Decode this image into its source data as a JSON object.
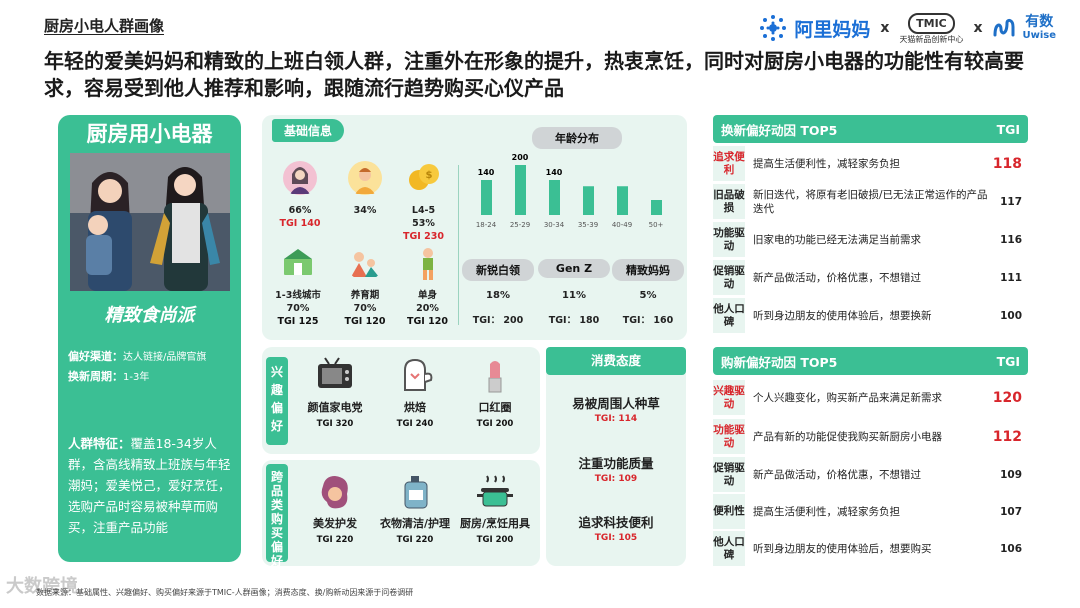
{
  "header": {
    "page_title": "厨房小电人群画像",
    "headline": "年轻的爱美妈妈和精致的上班白领人群，注重外在形象的提升，热衷烹饪，同时对厨房小电器的功能性有较高要求，容易受到他人推荐和影响，跟随流行趋势购买心仪产品"
  },
  "logos": {
    "alimama": "阿里妈妈",
    "tmic": "TMIC",
    "tmic_sub": "天猫新品创新中心",
    "uwise_cn": "有数",
    "uwise_en": "Uwise",
    "sep": "x"
  },
  "left": {
    "title": "厨房用小电器",
    "subtitle": "精致食尚派",
    "channel_label": "偏好渠道：",
    "channel_value": "达人链接/品牌官旗",
    "cycle_label": "换新周期：",
    "cycle_value": "1-3年",
    "feature_label": "人群特征：",
    "feature_text": "覆盖18-34岁人群，含高线精致上班族与年轻潮妈；爱美悦己，爱好烹饪，选购产品时容易被种草而购买，注重产品功能"
  },
  "basic": {
    "title": "基础信息",
    "stats": [
      {
        "value": "66%",
        "tgi": "TGI 140",
        "icon": "female-icon",
        "tgi_red": true
      },
      {
        "value": "34%",
        "tgi": "",
        "icon": "male-icon",
        "tgi_red": false
      },
      {
        "value": "L4-5",
        "value2": "53%",
        "tgi": "TGI 230",
        "icon": "coins-icon",
        "tgi_red": true
      },
      {
        "value": "1-3线城市",
        "value2": "70%",
        "tgi": "TGI 125",
        "icon": "city-icon",
        "tgi_red": false
      },
      {
        "value": "养育期",
        "value2": "70%",
        "tgi": "TGI 120",
        "icon": "parenting-icon",
        "tgi_red": false
      },
      {
        "value": "单身",
        "value2": "20%",
        "tgi": "TGI 120",
        "icon": "single-icon",
        "tgi_red": false
      }
    ]
  },
  "age": {
    "title": "年龄分布"
  },
  "chart_data": {
    "type": "bar",
    "title": "年龄分布",
    "categories": [
      "18-24",
      "25-29",
      "30-34",
      "35-39",
      "40-49",
      "50+"
    ],
    "values": [
      140,
      200,
      140,
      null,
      null,
      null
    ],
    "labels": [
      "140",
      "200",
      "140",
      "",
      "",
      ""
    ],
    "approx_heights": [
      140,
      200,
      140,
      115,
      115,
      60
    ]
  },
  "segments": [
    {
      "name": "新锐白领",
      "value": "18%",
      "tgi": "TGI： 200"
    },
    {
      "name": "Gen Z",
      "value": "11%",
      "tgi": "TGI： 180"
    },
    {
      "name": "精致妈妈",
      "value": "5%",
      "tgi": "TGI： 160"
    }
  ],
  "interest": {
    "title": "兴趣偏好",
    "items": [
      {
        "name": "颜值家电党",
        "tgi": "TGI 320",
        "icon": "tv-icon"
      },
      {
        "name": "烘焙",
        "tgi": "TGI 240",
        "icon": "oven-mitt-icon"
      },
      {
        "name": "口红圈",
        "tgi": "TGI 200",
        "icon": "lipstick-icon"
      }
    ]
  },
  "cross": {
    "title": "跨品类购买偏好",
    "items": [
      {
        "name": "美发护发",
        "tgi": "TGI 220",
        "icon": "hair-icon"
      },
      {
        "name": "衣物清洁/护理",
        "tgi": "TGI 220",
        "icon": "detergent-icon"
      },
      {
        "name": "厨房/烹饪用具",
        "tgi": "TGI 200",
        "icon": "pot-icon"
      }
    ]
  },
  "attitude": {
    "title": "消费态度",
    "items": [
      {
        "name": "易被周围人种草",
        "tgi": "TGI: 114"
      },
      {
        "name": "注重功能质量",
        "tgi": "TGI: 109"
      },
      {
        "name": "追求科技便利",
        "tgi": "TGI: 105"
      }
    ]
  },
  "renew": {
    "title": "换新偏好动因 TOP5",
    "tgi_label": "TGI",
    "rows": [
      {
        "label": "追求便利",
        "text": "提高生活便利性，减轻家务负担",
        "value": "118",
        "red": true
      },
      {
        "label": "旧品破损",
        "text": "新旧迭代，将原有老旧破损/已无法正常运作的产品迭代",
        "value": "117",
        "red": false
      },
      {
        "label": "功能驱动",
        "text": "旧家电的功能已经无法满足当前需求",
        "value": "116",
        "red": false
      },
      {
        "label": "促销驱动",
        "text": "新产品做活动，价格优惠，不想错过",
        "value": "111",
        "red": false
      },
      {
        "label": "他人口碑",
        "text": "听到身边朋友的使用体验后，想要换新",
        "value": "100",
        "red": false
      }
    ]
  },
  "purchase": {
    "title": "购新偏好动因 TOP5",
    "tgi_label": "TGI",
    "rows": [
      {
        "label": "兴趣驱动",
        "text": "个人兴趣变化，购买新产品来满足新需求",
        "value": "120",
        "red": true
      },
      {
        "label": "功能驱动",
        "text": "产品有新的功能促使我购买新厨房小电器",
        "value": "112",
        "red": true
      },
      {
        "label": "促销驱动",
        "text": "新产品做活动，价格优惠，不想错过",
        "value": "109",
        "red": false
      },
      {
        "label": "便利性",
        "text": "提高生活便利性，减轻家务负担",
        "value": "107",
        "red": false
      },
      {
        "label": "他人口碑",
        "text": "听到身边朋友的使用体验后，想要购买",
        "value": "106",
        "red": false
      }
    ]
  },
  "footer": {
    "text": "数据来源：基础属性、兴趣偏好、购买偏好来源于TMIC-人群画像；消费态度、换/购新动因来源于问卷调研",
    "watermark": "大数跨境"
  },
  "colors": {
    "accent": "#3bbf94",
    "panel": "#e8f5f0",
    "red": "#d8262c"
  }
}
